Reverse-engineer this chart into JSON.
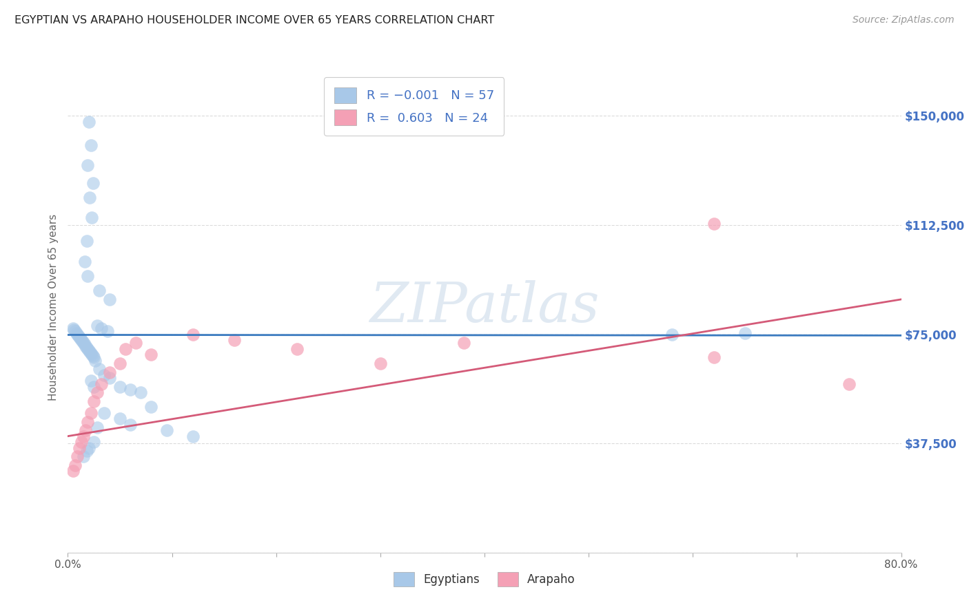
{
  "title": "EGYPTIAN VS ARAPAHO HOUSEHOLDER INCOME OVER 65 YEARS CORRELATION CHART",
  "source": "Source: ZipAtlas.com",
  "ylabel": "Householder Income Over 65 years",
  "watermark": "ZIPatlas",
  "xlim": [
    0.0,
    0.8
  ],
  "ylim": [
    0,
    168750
  ],
  "yticks": [
    0,
    37500,
    75000,
    112500,
    150000
  ],
  "ytick_labels": [
    "",
    "$37,500",
    "$75,000",
    "$112,500",
    "$150,000"
  ],
  "xticks": [
    0.0,
    0.1,
    0.2,
    0.3,
    0.4,
    0.5,
    0.6,
    0.7,
    0.8
  ],
  "xtick_labels": [
    "0.0%",
    "",
    "",
    "",
    "",
    "",
    "",
    "",
    "80.0%"
  ],
  "legend_label1": "Egyptians",
  "legend_label2": "Arapaho",
  "blue_color": "#a8c8e8",
  "pink_color": "#f4a0b5",
  "line_blue": "#3a7abf",
  "line_pink": "#d45a78",
  "r_color": "#4472c4",
  "background_color": "#ffffff",
  "grid_color": "#cccccc",
  "title_color": "#333333",
  "right_tick_color": "#4472c4",
  "egyptian_x": [
    0.02,
    0.022,
    0.019,
    0.024,
    0.021,
    0.023,
    0.018,
    0.016,
    0.019,
    0.03,
    0.04,
    0.005,
    0.006,
    0.007,
    0.008,
    0.009,
    0.01,
    0.011,
    0.012,
    0.013,
    0.014,
    0.015,
    0.016,
    0.017,
    0.018,
    0.019,
    0.02,
    0.021,
    0.022,
    0.023,
    0.024,
    0.025,
    0.026,
    0.028,
    0.032,
    0.038,
    0.04,
    0.05,
    0.06,
    0.07,
    0.08,
    0.035,
    0.05,
    0.06,
    0.095,
    0.12,
    0.025,
    0.02,
    0.018,
    0.015,
    0.03,
    0.035,
    0.022,
    0.025,
    0.028,
    0.58,
    0.65
  ],
  "egyptian_y": [
    148000,
    140000,
    133000,
    127000,
    122000,
    115000,
    107000,
    100000,
    95000,
    90000,
    87000,
    77000,
    76500,
    76000,
    75500,
    75000,
    74500,
    74000,
    73500,
    73000,
    72500,
    72000,
    71500,
    71000,
    70500,
    70000,
    69500,
    69000,
    68500,
    68000,
    67500,
    67000,
    66000,
    78000,
    77000,
    76000,
    60000,
    57000,
    56000,
    55000,
    50000,
    48000,
    46000,
    44000,
    42000,
    40000,
    38000,
    36000,
    35000,
    33000,
    63000,
    61000,
    59000,
    57000,
    43000,
    75000,
    75500
  ],
  "arapaho_x": [
    0.005,
    0.007,
    0.009,
    0.011,
    0.013,
    0.015,
    0.017,
    0.019,
    0.022,
    0.025,
    0.028,
    0.032,
    0.04,
    0.05,
    0.055,
    0.065,
    0.08,
    0.12,
    0.16,
    0.22,
    0.3,
    0.38,
    0.62,
    0.62,
    0.75
  ],
  "arapaho_y": [
    28000,
    30000,
    33000,
    36000,
    38000,
    40000,
    42000,
    45000,
    48000,
    52000,
    55000,
    58000,
    62000,
    65000,
    70000,
    72000,
    68000,
    75000,
    73000,
    70000,
    65000,
    72000,
    113000,
    67000,
    58000
  ],
  "blue_line_y0": 74800,
  "blue_line_y1": 74600,
  "pink_line_y0": 40000,
  "pink_line_y1": 87000
}
